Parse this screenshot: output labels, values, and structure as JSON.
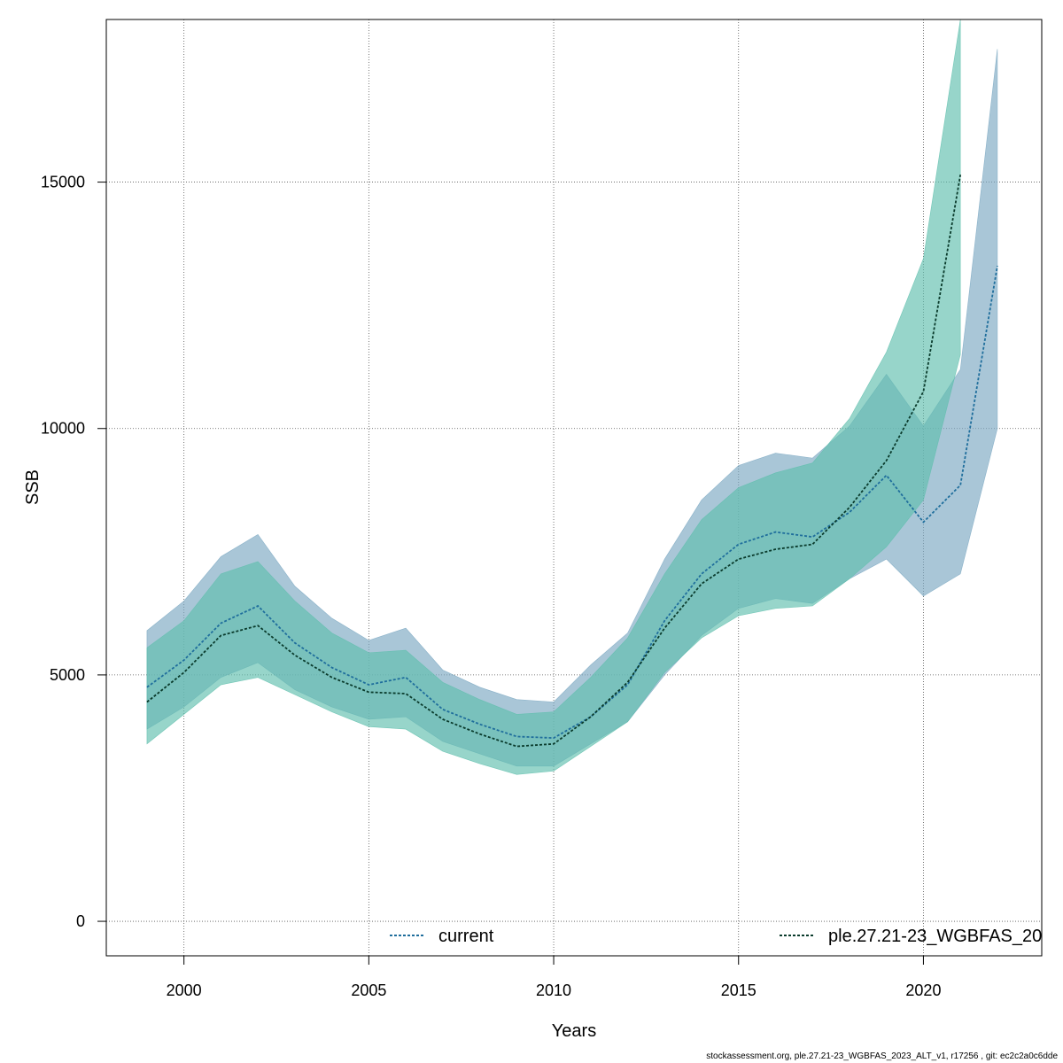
{
  "chart_data": {
    "type": "line",
    "xlabel": "Years",
    "ylabel": "SSB",
    "xlim": [
      1997.9,
      2023.2
    ],
    "ylim": [
      -700,
      18300
    ],
    "xticks": [
      2000,
      2005,
      2010,
      2015,
      2020
    ],
    "yticks": [
      0,
      5000,
      10000,
      15000
    ],
    "grid": true,
    "legend_position": "bottom",
    "series": [
      {
        "name": "current",
        "color": "#1f6e9c",
        "band_color": "#7ba7c2",
        "x": [
          1999,
          2000,
          2001,
          2002,
          2003,
          2004,
          2005,
          2006,
          2007,
          2008,
          2009,
          2010,
          2011,
          2012,
          2013,
          2014,
          2015,
          2016,
          2017,
          2018,
          2019,
          2020,
          2021,
          2022
        ],
        "values": [
          4750,
          5300,
          6050,
          6400,
          5650,
          5150,
          4800,
          4950,
          4300,
          4000,
          3750,
          3720,
          4150,
          4800,
          6100,
          7050,
          7650,
          7900,
          7800,
          8300,
          9050,
          8100,
          8850,
          13300
        ],
        "upper": [
          5900,
          6500,
          7400,
          7850,
          6800,
          6150,
          5700,
          5950,
          5100,
          4750,
          4500,
          4450,
          5200,
          5850,
          7350,
          8550,
          9250,
          9500,
          9400,
          10050,
          11100,
          10050,
          11200,
          17700
        ],
        "lower": [
          3900,
          4350,
          4950,
          5250,
          4700,
          4350,
          4100,
          4150,
          3650,
          3400,
          3150,
          3150,
          3600,
          4050,
          5000,
          5800,
          6350,
          6550,
          6450,
          6950,
          7350,
          6600,
          7050,
          10000
        ]
      },
      {
        "name": "ple.27.21-23_WGBFAS_20",
        "color": "#0a3b2c",
        "band_color": "#5fbfad",
        "x": [
          1999,
          2000,
          2001,
          2002,
          2003,
          2004,
          2005,
          2006,
          2007,
          2008,
          2009,
          2010,
          2011,
          2012,
          2013,
          2014,
          2015,
          2016,
          2017,
          2018,
          2019,
          2020,
          2021
        ],
        "values": [
          4450,
          5050,
          5800,
          6000,
          5400,
          4950,
          4650,
          4620,
          4100,
          3800,
          3550,
          3600,
          4150,
          4850,
          5950,
          6850,
          7350,
          7550,
          7650,
          8400,
          9350,
          10750,
          15150
        ],
        "upper": [
          5550,
          6100,
          7050,
          7300,
          6500,
          5850,
          5450,
          5500,
          4850,
          4500,
          4200,
          4250,
          4950,
          5750,
          7050,
          8150,
          8800,
          9100,
          9300,
          10200,
          11550,
          13450,
          18300
        ],
        "lower": [
          3600,
          4200,
          4800,
          4950,
          4600,
          4250,
          3950,
          3900,
          3450,
          3200,
          2980,
          3050,
          3550,
          4050,
          5050,
          5750,
          6200,
          6350,
          6400,
          6950,
          7600,
          8550,
          11500
        ]
      }
    ],
    "footer": "stockassessment.org, ple.27.21-23_WGBFAS_2023_ALT_v1, r17256 , git: ec2c2a0c6dde"
  }
}
